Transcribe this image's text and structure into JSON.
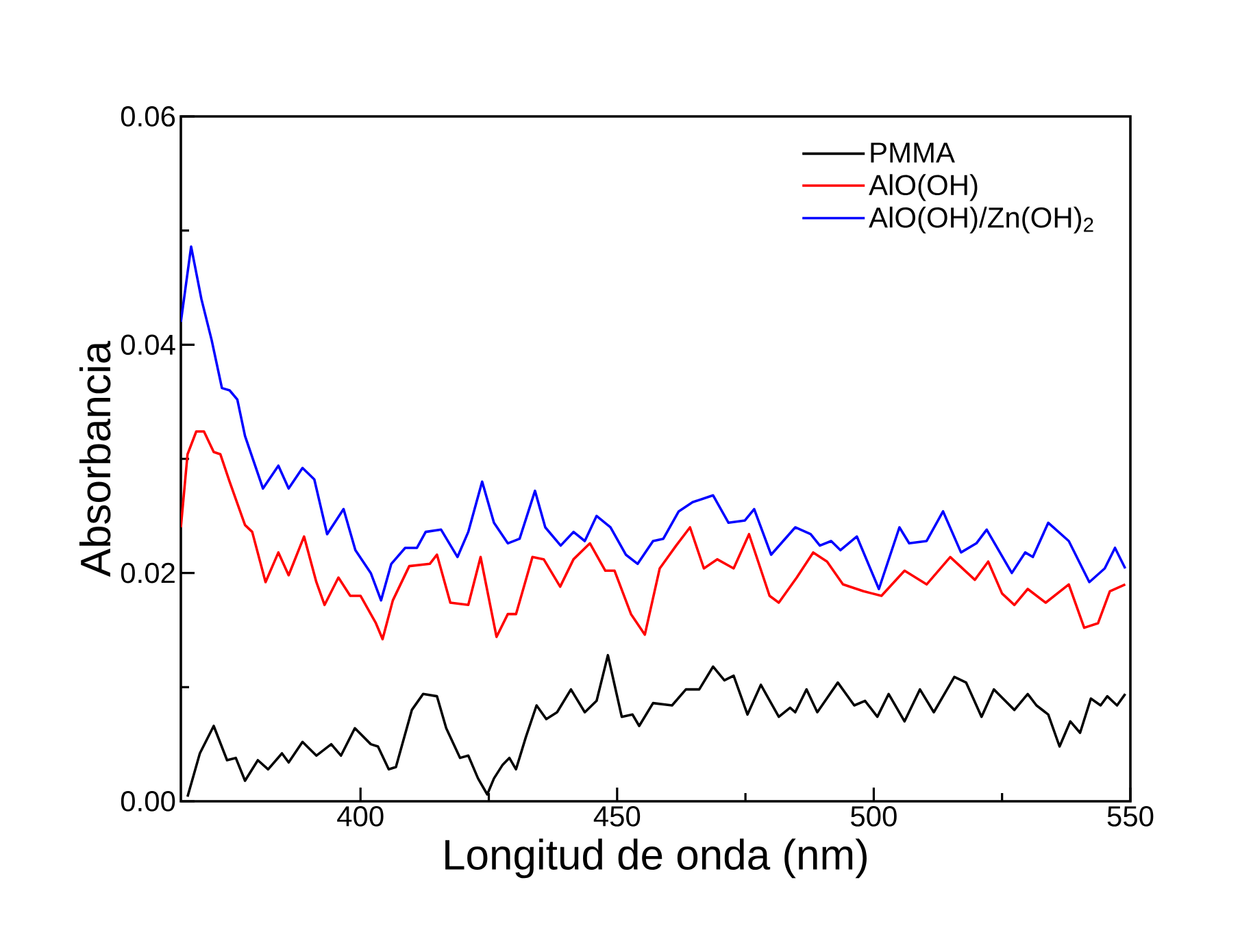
{
  "chart_data": {
    "type": "line",
    "xlabel": "Longitud de onda (nm)",
    "ylabel": "Absorbancia",
    "xlim": [
      365,
      550
    ],
    "ylim": [
      0,
      0.06
    ],
    "xticks": [
      400,
      450,
      500,
      550
    ],
    "yticks": [
      {
        "value": 0,
        "label": "0.00"
      },
      {
        "value": 0.02,
        "label": "0.02"
      },
      {
        "value": 0.04,
        "label": "0.04"
      },
      {
        "value": 0.06,
        "label": "0.06"
      }
    ],
    "legend": "top right",
    "grid": false,
    "line_style": "solid",
    "series": [
      {
        "name": "PMMA",
        "color": "#000000",
        "x": [
          366.3,
          368.7,
          371.4,
          374,
          375.7,
          377.5,
          380,
          382,
          384.7,
          386,
          388.7,
          391.4,
          394.3,
          396.2,
          398.9,
          402,
          403.4,
          405.5,
          406.9,
          410,
          412.2,
          414.9,
          416.7,
          419.4,
          421,
          422.9,
          424.7,
          426,
          427.7,
          429,
          430.3,
          432.2,
          434.3,
          436.2,
          438.3,
          441,
          443.7,
          446,
          448.2,
          450.9,
          453,
          454.3,
          457,
          460.7,
          463.4,
          466,
          468.7,
          470.9,
          472.7,
          475.4,
          478,
          481.5,
          483.7,
          484.7,
          486.9,
          489,
          493,
          496.2,
          498.3,
          500.7,
          502.9,
          506,
          509,
          511.7,
          515.7,
          518,
          521,
          523.4,
          527.4,
          530,
          531.7,
          534,
          536.2,
          538.3,
          540.2,
          542.3,
          544.2,
          545.5,
          547.4,
          549
        ],
        "values": [
          0.0004,
          0.0042,
          0.0066,
          0.0036,
          0.0038,
          0.0018,
          0.0036,
          0.0028,
          0.0042,
          0.0034,
          0.0052,
          0.004,
          0.005,
          0.004,
          0.0064,
          0.005,
          0.0048,
          0.0028,
          0.003,
          0.008,
          0.0094,
          0.0092,
          0.0064,
          0.0038,
          0.004,
          0.002,
          0.0006,
          0.002,
          0.0032,
          0.0038,
          0.0028,
          0.0056,
          0.0084,
          0.0072,
          0.0078,
          0.0098,
          0.0078,
          0.0088,
          0.0128,
          0.0074,
          0.0076,
          0.0066,
          0.0086,
          0.0084,
          0.0098,
          0.0098,
          0.0118,
          0.0106,
          0.011,
          0.0076,
          0.0102,
          0.0074,
          0.0082,
          0.0078,
          0.0098,
          0.0078,
          0.0104,
          0.0084,
          0.0088,
          0.0074,
          0.0094,
          0.007,
          0.0098,
          0.0078,
          0.0109,
          0.0104,
          0.0074,
          0.0098,
          0.008,
          0.0094,
          0.0084,
          0.0076,
          0.0048,
          0.007,
          0.006,
          0.009,
          0.0084,
          0.0092,
          0.0084,
          0.0094
        ]
      },
      {
        "name": "AlO(OH)",
        "color": "#ff0000",
        "x": [
          365,
          366.3,
          368,
          369.5,
          371.4,
          372.7,
          374.5,
          377.5,
          378.9,
          381.5,
          384,
          386,
          389,
          391.4,
          393,
          395.7,
          398,
          400,
          403,
          404.3,
          406.3,
          409.5,
          413.5,
          414.9,
          417.5,
          421,
          423.4,
          426.5,
          428.7,
          430.3,
          433.5,
          435.7,
          438.9,
          441.5,
          444.7,
          447.7,
          449.5,
          452.7,
          455.4,
          458.3,
          461.5,
          464.2,
          466.9,
          469.5,
          472.7,
          475.7,
          479.7,
          481.5,
          485,
          488.2,
          490.9,
          494,
          498,
          501.5,
          506,
          510.3,
          514.9,
          519.7,
          522.3,
          525,
          527.4,
          530,
          533.5,
          538,
          541,
          543.7,
          546,
          549
        ],
        "values": [
          0.024,
          0.0304,
          0.0324,
          0.0324,
          0.0306,
          0.0304,
          0.028,
          0.0242,
          0.0236,
          0.0192,
          0.0218,
          0.0198,
          0.0232,
          0.0192,
          0.0172,
          0.0196,
          0.018,
          0.018,
          0.0156,
          0.0142,
          0.0176,
          0.0206,
          0.0208,
          0.0216,
          0.0174,
          0.0172,
          0.0214,
          0.0144,
          0.0164,
          0.0164,
          0.0214,
          0.0212,
          0.0188,
          0.0212,
          0.0226,
          0.0202,
          0.0202,
          0.0164,
          0.0146,
          0.0204,
          0.0224,
          0.024,
          0.0204,
          0.0212,
          0.0204,
          0.0234,
          0.018,
          0.0174,
          0.0196,
          0.0218,
          0.021,
          0.019,
          0.0184,
          0.018,
          0.0202,
          0.019,
          0.0214,
          0.0194,
          0.021,
          0.0182,
          0.0172,
          0.0186,
          0.0174,
          0.019,
          0.0152,
          0.0156,
          0.0184,
          0.019
        ]
      },
      {
        "name": "AlO(OH)/Zn(OH)$_{2}$",
        "color": "#0000ff",
        "x": [
          365,
          367,
          369,
          371,
          373,
          374.5,
          376,
          377.5,
          381,
          384,
          386,
          388.7,
          391,
          393.5,
          396.7,
          399,
          402,
          404,
          406,
          408.7,
          411,
          412.7,
          415.7,
          418.9,
          421,
          423.7,
          426,
          428.7,
          431,
          434,
          436,
          439,
          441.5,
          443.7,
          446,
          448.7,
          451.7,
          454,
          457,
          459,
          462,
          464.7,
          468.7,
          471.7,
          474.9,
          476.7,
          480,
          484.7,
          487.7,
          489.5,
          491.7,
          493.5,
          496.7,
          501,
          505,
          506.9,
          510.3,
          513.5,
          517,
          520,
          522,
          526.9,
          529.5,
          531,
          534,
          538,
          542,
          545,
          547,
          549
        ],
        "values": [
          0.042,
          0.0486,
          0.044,
          0.0404,
          0.0362,
          0.036,
          0.0352,
          0.032,
          0.0274,
          0.0294,
          0.0274,
          0.0292,
          0.0282,
          0.0234,
          0.0256,
          0.022,
          0.02,
          0.0176,
          0.0208,
          0.0222,
          0.0222,
          0.0236,
          0.0238,
          0.0214,
          0.0236,
          0.028,
          0.0244,
          0.0226,
          0.023,
          0.0272,
          0.024,
          0.0224,
          0.0236,
          0.0228,
          0.025,
          0.024,
          0.0216,
          0.0208,
          0.0228,
          0.023,
          0.0254,
          0.0262,
          0.0268,
          0.0244,
          0.0246,
          0.0256,
          0.0216,
          0.024,
          0.0234,
          0.0224,
          0.0228,
          0.022,
          0.0232,
          0.0186,
          0.024,
          0.0226,
          0.0228,
          0.0254,
          0.0218,
          0.0226,
          0.0238,
          0.02,
          0.0218,
          0.0214,
          0.0244,
          0.0228,
          0.0192,
          0.0204,
          0.0222,
          0.0204
        ]
      }
    ]
  }
}
